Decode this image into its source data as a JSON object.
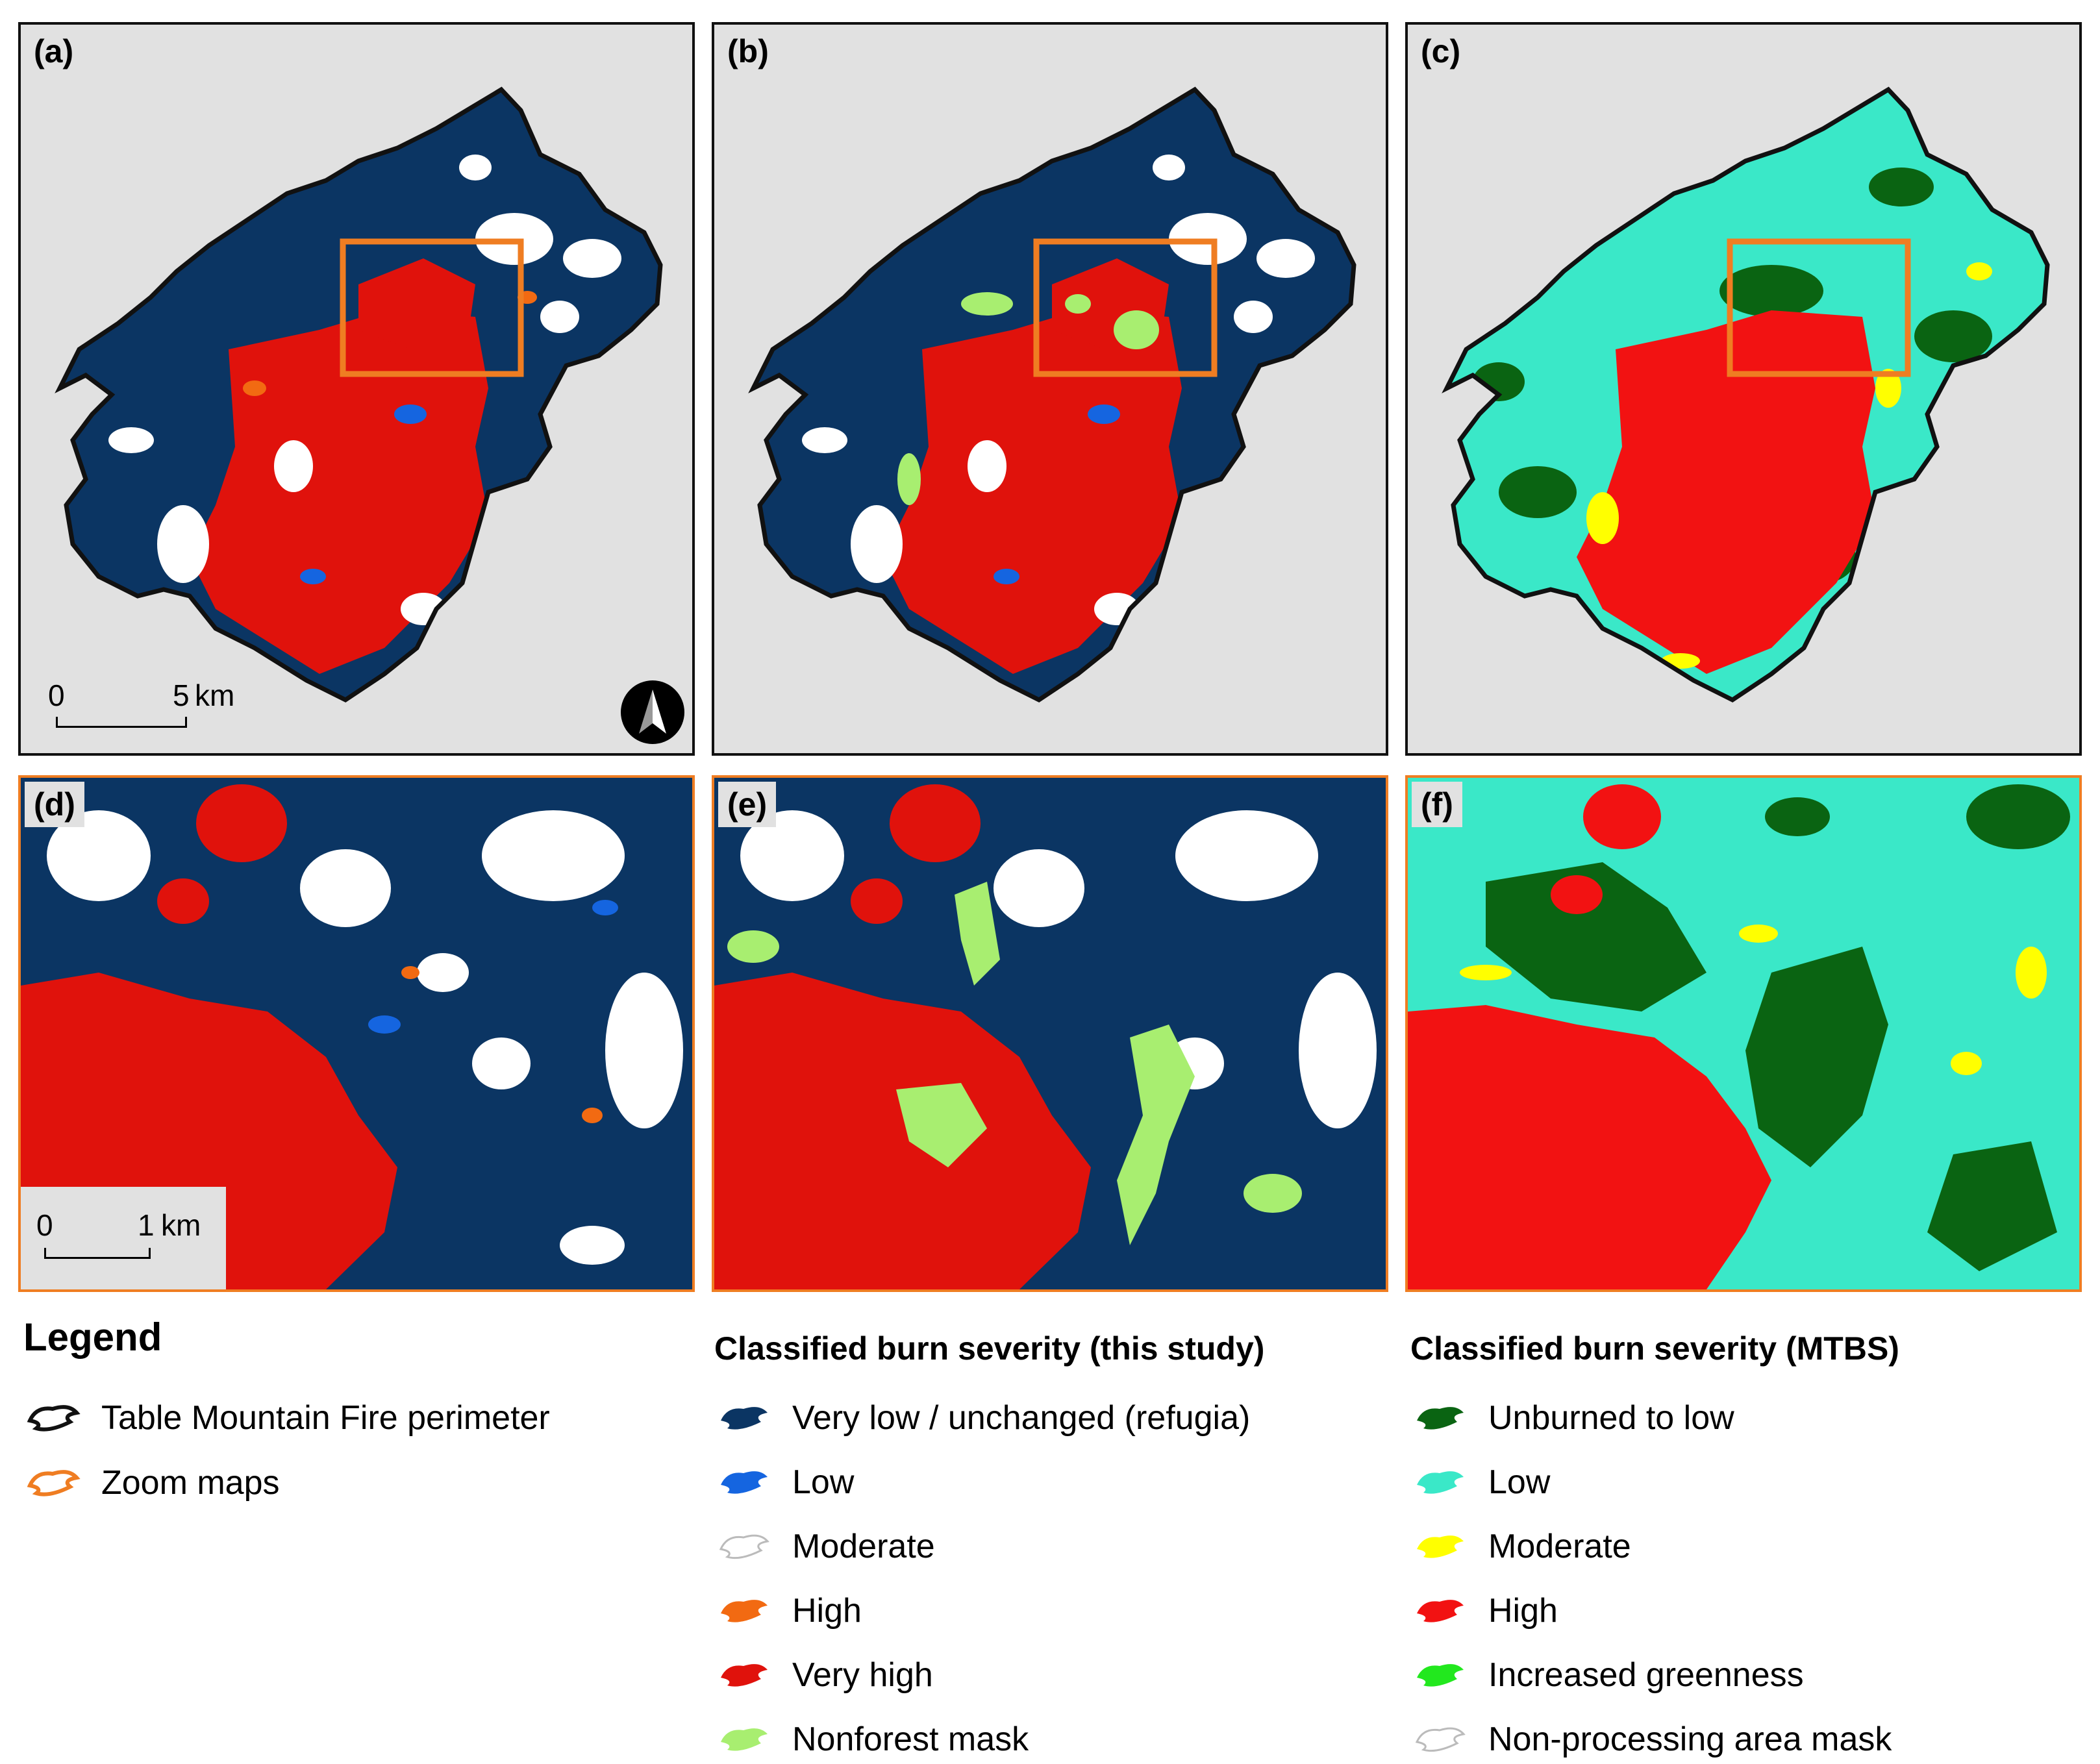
{
  "panels": [
    {
      "id": "a",
      "label": "(a)"
    },
    {
      "id": "b",
      "label": "(b)"
    },
    {
      "id": "c",
      "label": "(c)"
    },
    {
      "id": "d",
      "label": "(d)"
    },
    {
      "id": "e",
      "label": "(e)"
    },
    {
      "id": "f",
      "label": "(f)"
    }
  ],
  "scalebar_overview": {
    "start": "0",
    "end": "5",
    "unit": "km"
  },
  "scalebar_zoom": {
    "start": "0",
    "end": "1",
    "unit": "km"
  },
  "legend": {
    "title": "Legend",
    "perimeter_label": "Table Mountain Fire perimeter",
    "zoom_label": "Zoom maps",
    "perimeter_color": "#111111",
    "zoom_color": "#ef7d22"
  },
  "study_legend": {
    "title": "Classified burn severity (this study)",
    "items": [
      {
        "label": "Very low / unchanged (refugia)",
        "color": "#0b3563"
      },
      {
        "label": "Low",
        "color": "#1565e0"
      },
      {
        "label": "Moderate",
        "color": "#ffffff"
      },
      {
        "label": "High",
        "color": "#f26a12"
      },
      {
        "label": "Very high",
        "color": "#e0120c"
      },
      {
        "label": "Nonforest mask",
        "color": "#a8ee70"
      }
    ]
  },
  "mtbs_legend": {
    "title": "Classified burn severity (MTBS)",
    "items": [
      {
        "label": "Unburned to low",
        "color": "#0a6412"
      },
      {
        "label": "Low",
        "color": "#3ae8c8"
      },
      {
        "label": "Moderate",
        "color": "#ffff00"
      },
      {
        "label": "High",
        "color": "#f21212"
      },
      {
        "label": "Increased greenness",
        "color": "#22e81e"
      },
      {
        "label": "Non-processing area mask",
        "color": "#ffffff"
      }
    ]
  }
}
